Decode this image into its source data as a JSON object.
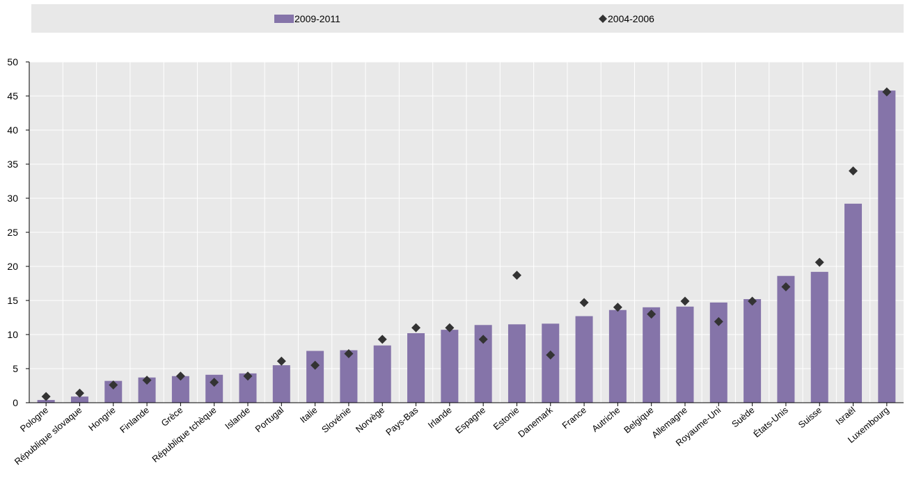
{
  "chart_data": {
    "type": "bar",
    "title": "",
    "xlabel": "",
    "ylabel": "",
    "ylim": [
      0,
      50
    ],
    "yticks": [
      0,
      5,
      10,
      15,
      20,
      25,
      30,
      35,
      40,
      45,
      50
    ],
    "grid": true,
    "legend_position": "top",
    "categories": [
      "Pologne",
      "République slovaque",
      "Hongrie",
      "Finlande",
      "Grèce",
      "République tchèque",
      "Islande",
      "Portugal",
      "Italie",
      "Slovénie",
      "Norvège",
      "Pays-Bas",
      "Irlande",
      "Espagne",
      "Estonie",
      "Danemark",
      "France",
      "Autriche",
      "Belgique",
      "Allemagne",
      "Royaume-Uni",
      "Suède",
      "États-Unis",
      "Suisse",
      "Israël",
      "Luxembourg"
    ],
    "series": [
      {
        "name": "2009-2011",
        "type": "bar",
        "color": "#8574a9",
        "values": [
          0.4,
          0.9,
          3.2,
          3.7,
          3.9,
          4.1,
          4.3,
          5.5,
          7.6,
          7.7,
          8.4,
          10.2,
          10.7,
          11.4,
          11.5,
          11.6,
          12.7,
          13.6,
          14.0,
          14.1,
          14.7,
          15.2,
          18.6,
          19.2,
          29.2,
          45.8
        ]
      },
      {
        "name": "2004-2006",
        "type": "marker",
        "color": "#333333",
        "values": [
          0.9,
          1.4,
          2.6,
          3.3,
          3.9,
          3.0,
          3.9,
          6.1,
          5.5,
          7.2,
          9.3,
          11.0,
          11.0,
          9.3,
          18.7,
          7.0,
          14.7,
          14.0,
          13.0,
          14.9,
          11.9,
          14.9,
          17.0,
          20.6,
          34.0,
          45.6
        ]
      }
    ]
  }
}
